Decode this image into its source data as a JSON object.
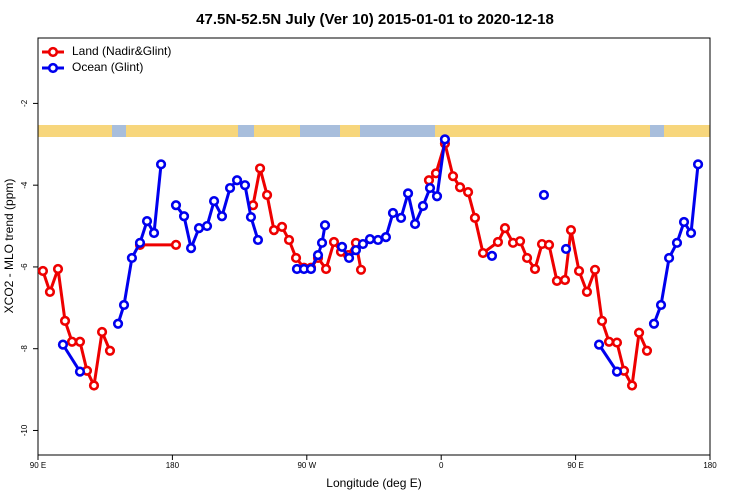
{
  "chart_data": {
    "type": "line",
    "title": "47.5N-52.5N July (Ver 10)   2015-01-01 to 2020-12-18",
    "xlabel": "Longitude (deg E)",
    "ylabel": "XCO2 - MLO trend (ppm)",
    "xlim": [
      90,
      540
    ],
    "ylim": [
      -10.6,
      -0.4
    ],
    "xticks": [
      {
        "value": 90,
        "label": "90 E"
      },
      180,
      {
        "value": 270,
        "label": "90 W"
      },
      {
        "value": 360,
        "label": "0"
      },
      {
        "value": 450,
        "label": "90 E"
      },
      {
        "value": 540,
        "label": "180"
      }
    ],
    "yticks": [
      -2,
      -4,
      -6,
      -8,
      -10
    ],
    "legend": "upper left",
    "series": [
      {
        "name": "Land (Nadir&Glint)",
        "color": "#ee0000",
        "x": [
          93.3,
          98.0,
          103.4,
          108.1,
          112.8,
          118.1,
          122.8,
          127.5,
          132.9,
          138.2,
          null,
          158.3,
          182.4,
          null,
          234.0,
          238.7,
          243.4,
          248.0,
          253.4,
          258.1,
          262.8,
          268.1,
          272.8,
          277.5,
          282.9,
          288.2,
          292.9,
          297.6,
          302.9,
          306.3,
          null,
          351.8,
          356.5,
          362.5,
          367.9,
          372.6,
          378.0,
          382.6,
          388.0,
          398.0,
          402.7,
          408.1,
          412.8,
          417.5,
          422.8,
          427.5,
          432.2,
          437.5,
          442.9,
          446.9,
          452.3,
          457.6,
          463.0,
          467.7,
          472.4,
          477.7,
          482.4,
          487.8,
          492.5,
          497.8
        ],
        "values": [
          -6.1,
          -6.61,
          -6.05,
          -7.32,
          -7.83,
          -7.83,
          -8.54,
          -8.9,
          -7.59,
          -8.05,
          null,
          -5.46,
          -5.46,
          null,
          -4.49,
          -3.59,
          -4.24,
          -5.1,
          -5.02,
          -5.34,
          -5.78,
          -6.02,
          -6.02,
          -5.78,
          -6.05,
          -5.39,
          -5.63,
          -5.71,
          -5.41,
          -6.07,
          null,
          -3.88,
          -3.71,
          -2.98,
          -3.78,
          -4.05,
          -4.17,
          -4.8,
          -5.66,
          -5.39,
          -5.05,
          -5.41,
          -5.37,
          -5.78,
          -6.05,
          -5.44,
          -5.46,
          -6.34,
          -6.32,
          -5.1,
          -6.1,
          -6.61,
          -6.07,
          -7.32,
          -7.83,
          -7.85,
          -8.54,
          -8.9,
          -7.61,
          -8.05
        ]
      },
      {
        "name": "Ocean (Glint)",
        "color": "#0000ee",
        "x": [
          106.7,
          118.1,
          null,
          143.6,
          147.6,
          152.9,
          158.3,
          163.0,
          167.7,
          172.4,
          null,
          182.4,
          187.8,
          192.5,
          197.8,
          203.2,
          207.9,
          213.2,
          218.6,
          223.3,
          228.6,
          232.6,
          237.3,
          null,
          263.4,
          268.1,
          272.8,
          277.5,
          280.2,
          282.2,
          null,
          293.6,
          298.3,
          302.9,
          307.6,
          312.3,
          317.7,
          323.0,
          327.7,
          333.1,
          337.8,
          342.5,
          347.8,
          352.5,
          357.2,
          362.5,
          null,
          394.0,
          null,
          428.8,
          null,
          443.6,
          null,
          465.7,
          477.7,
          null,
          502.5,
          507.2,
          512.6,
          517.9,
          522.6,
          527.3,
          532.0
        ],
        "values": [
          -7.9,
          -8.56,
          null,
          -7.39,
          -6.93,
          -5.78,
          -5.41,
          -4.88,
          -5.17,
          -3.49,
          null,
          -4.49,
          -4.76,
          -5.54,
          -5.05,
          -5.0,
          -4.39,
          -4.76,
          -4.07,
          -3.88,
          -4.0,
          -4.78,
          -5.34,
          null,
          -6.05,
          -6.05,
          -6.05,
          -5.71,
          -5.41,
          -4.98,
          null,
          -5.51,
          -5.78,
          -5.59,
          -5.44,
          -5.32,
          -5.34,
          -5.27,
          -4.68,
          -4.8,
          -4.2,
          -4.95,
          -4.51,
          -4.07,
          -4.27,
          -2.88,
          null,
          -5.73,
          null,
          -4.24,
          null,
          -5.56,
          null,
          -7.9,
          -8.56,
          null,
          -7.39,
          -6.93,
          -5.78,
          -5.41,
          -4.9,
          -5.17,
          -3.49
        ]
      }
    ]
  }
}
